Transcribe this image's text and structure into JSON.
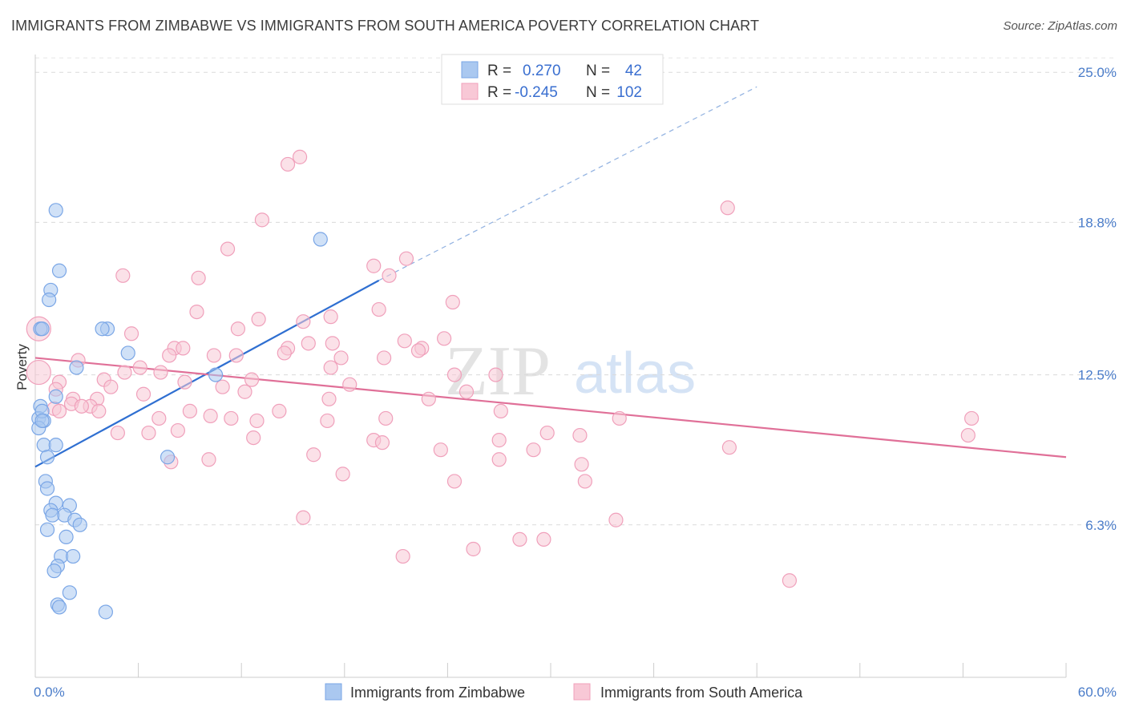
{
  "title": "IMMIGRANTS FROM ZIMBABWE VS IMMIGRANTS FROM SOUTH AMERICA POVERTY CORRELATION CHART",
  "source": "Source: ZipAtlas.com",
  "watermark": {
    "zip": "ZIP",
    "atlas": "atlas"
  },
  "chart_data": {
    "type": "scatter",
    "xlabel": "",
    "ylabel": "Poverty",
    "xlim": [
      0,
      60
    ],
    "ylim": [
      0,
      26
    ],
    "x_tick_labels": {
      "min": "0.0%",
      "max": "60.0%"
    },
    "y_ticks": [
      {
        "value": 6.3,
        "label": "6.3%"
      },
      {
        "value": 12.5,
        "label": "12.5%"
      },
      {
        "value": 18.8,
        "label": "18.8%"
      },
      {
        "value": 25.0,
        "label": "25.0%"
      }
    ],
    "legend": {
      "r_label": "R =",
      "n_label": "N =",
      "entries": [
        {
          "r": "0.270",
          "n": "42"
        },
        {
          "r": "-0.245",
          "n": "102"
        }
      ]
    },
    "series": [
      {
        "name": "Immigrants from Zimbabwe",
        "color": "#7aa6e6",
        "fill": "#aac8f0",
        "line_color": "#2f6fd1",
        "trend": {
          "x0": 0,
          "y0": 8.7,
          "x1": 20.0,
          "y1": 16.4,
          "dash_to_x": 42.0,
          "dash_to_y": 24.4
        },
        "points": [
          [
            0.3,
            14.4
          ],
          [
            1.2,
            19.3
          ],
          [
            1.4,
            16.8
          ],
          [
            0.9,
            16.0
          ],
          [
            0.8,
            15.6
          ],
          [
            0.4,
            14.4
          ],
          [
            4.2,
            14.4
          ],
          [
            5.4,
            13.4
          ],
          [
            2.4,
            12.8
          ],
          [
            10.5,
            12.5
          ],
          [
            16.6,
            18.1
          ],
          [
            1.2,
            11.6
          ],
          [
            0.3,
            11.2
          ],
          [
            0.2,
            10.7
          ],
          [
            0.5,
            10.6
          ],
          [
            0.2,
            10.3
          ],
          [
            0.5,
            9.6
          ],
          [
            1.2,
            9.6
          ],
          [
            0.7,
            9.1
          ],
          [
            7.7,
            9.1
          ],
          [
            0.6,
            8.1
          ],
          [
            0.7,
            7.8
          ],
          [
            1.2,
            7.2
          ],
          [
            2.0,
            7.1
          ],
          [
            0.9,
            6.9
          ],
          [
            1.0,
            6.7
          ],
          [
            1.7,
            6.7
          ],
          [
            2.3,
            6.5
          ],
          [
            2.6,
            6.3
          ],
          [
            0.7,
            6.1
          ],
          [
            1.8,
            5.8
          ],
          [
            1.5,
            5.0
          ],
          [
            2.2,
            5.0
          ],
          [
            1.3,
            4.6
          ],
          [
            1.1,
            4.4
          ],
          [
            2.0,
            3.5
          ],
          [
            1.3,
            3.0
          ],
          [
            1.4,
            2.9
          ],
          [
            4.1,
            2.7
          ],
          [
            3.9,
            14.4
          ],
          [
            0.4,
            11.0
          ],
          [
            0.4,
            10.6
          ]
        ]
      },
      {
        "name": "Immigrants from South America",
        "color": "#f0a0bb",
        "fill": "#f8c8d6",
        "line_color": "#e07098",
        "trend": {
          "x0": 0,
          "y0": 13.2,
          "x1": 60.0,
          "y1": 9.1
        },
        "points": [
          [
            15.4,
            21.5
          ],
          [
            14.7,
            21.2
          ],
          [
            13.2,
            18.9
          ],
          [
            40.3,
            19.4
          ],
          [
            11.2,
            17.7
          ],
          [
            21.6,
            17.3
          ],
          [
            19.7,
            17.0
          ],
          [
            20.6,
            16.6
          ],
          [
            5.1,
            16.6
          ],
          [
            9.5,
            16.5
          ],
          [
            24.3,
            15.5
          ],
          [
            9.4,
            15.1
          ],
          [
            20.0,
            15.2
          ],
          [
            17.2,
            14.9
          ],
          [
            13.0,
            14.8
          ],
          [
            15.6,
            14.7
          ],
          [
            11.8,
            14.4
          ],
          [
            5.6,
            14.2
          ],
          [
            23.8,
            14.0
          ],
          [
            21.5,
            13.9
          ],
          [
            15.9,
            13.8
          ],
          [
            17.3,
            13.8
          ],
          [
            8.1,
            13.6
          ],
          [
            14.7,
            13.6
          ],
          [
            8.6,
            13.6
          ],
          [
            22.5,
            13.6
          ],
          [
            22.3,
            13.5
          ],
          [
            14.5,
            13.4
          ],
          [
            7.8,
            13.3
          ],
          [
            10.4,
            13.3
          ],
          [
            11.7,
            13.3
          ],
          [
            20.3,
            13.2
          ],
          [
            17.8,
            13.2
          ],
          [
            2.5,
            13.1
          ],
          [
            6.1,
            12.8
          ],
          [
            17.2,
            12.8
          ],
          [
            5.2,
            12.6
          ],
          [
            7.3,
            12.6
          ],
          [
            24.4,
            12.5
          ],
          [
            26.8,
            12.5
          ],
          [
            4.0,
            12.3
          ],
          [
            12.6,
            12.3
          ],
          [
            8.7,
            12.2
          ],
          [
            1.4,
            12.2
          ],
          [
            4.4,
            12.0
          ],
          [
            10.9,
            12.0
          ],
          [
            18.3,
            12.1
          ],
          [
            1.2,
            11.9
          ],
          [
            12.2,
            11.8
          ],
          [
            6.3,
            11.7
          ],
          [
            25.1,
            11.8
          ],
          [
            2.2,
            11.5
          ],
          [
            3.6,
            11.5
          ],
          [
            17.1,
            11.5
          ],
          [
            22.9,
            11.5
          ],
          [
            2.1,
            11.3
          ],
          [
            3.2,
            11.2
          ],
          [
            2.7,
            11.2
          ],
          [
            1.1,
            11.1
          ],
          [
            1.4,
            11.0
          ],
          [
            3.7,
            11.0
          ],
          [
            9.0,
            11.0
          ],
          [
            14.2,
            11.0
          ],
          [
            27.1,
            11.0
          ],
          [
            7.2,
            10.7
          ],
          [
            10.2,
            10.8
          ],
          [
            11.4,
            10.7
          ],
          [
            12.9,
            10.6
          ],
          [
            17.0,
            10.6
          ],
          [
            20.4,
            10.7
          ],
          [
            34.0,
            10.7
          ],
          [
            54.5,
            10.7
          ],
          [
            4.8,
            10.1
          ],
          [
            6.6,
            10.1
          ],
          [
            29.8,
            10.1
          ],
          [
            31.7,
            10.0
          ],
          [
            54.3,
            10.0
          ],
          [
            19.7,
            9.8
          ],
          [
            27.0,
            9.8
          ],
          [
            40.4,
            9.5
          ],
          [
            23.6,
            9.4
          ],
          [
            29.0,
            9.4
          ],
          [
            16.2,
            9.2
          ],
          [
            10.1,
            9.0
          ],
          [
            7.9,
            8.9
          ],
          [
            31.8,
            8.8
          ],
          [
            17.9,
            8.4
          ],
          [
            24.4,
            8.1
          ],
          [
            32.0,
            8.1
          ],
          [
            15.6,
            6.6
          ],
          [
            33.8,
            6.5
          ],
          [
            28.2,
            5.7
          ],
          [
            29.6,
            5.7
          ],
          [
            25.5,
            5.3
          ],
          [
            21.4,
            5.0
          ],
          [
            43.9,
            4.0
          ],
          [
            20.2,
            9.7
          ],
          [
            27.0,
            9.0
          ],
          [
            12.7,
            9.9
          ],
          [
            8.3,
            10.2
          ],
          [
            0.2,
            14.4
          ],
          [
            0.2,
            12.6
          ]
        ]
      }
    ]
  }
}
